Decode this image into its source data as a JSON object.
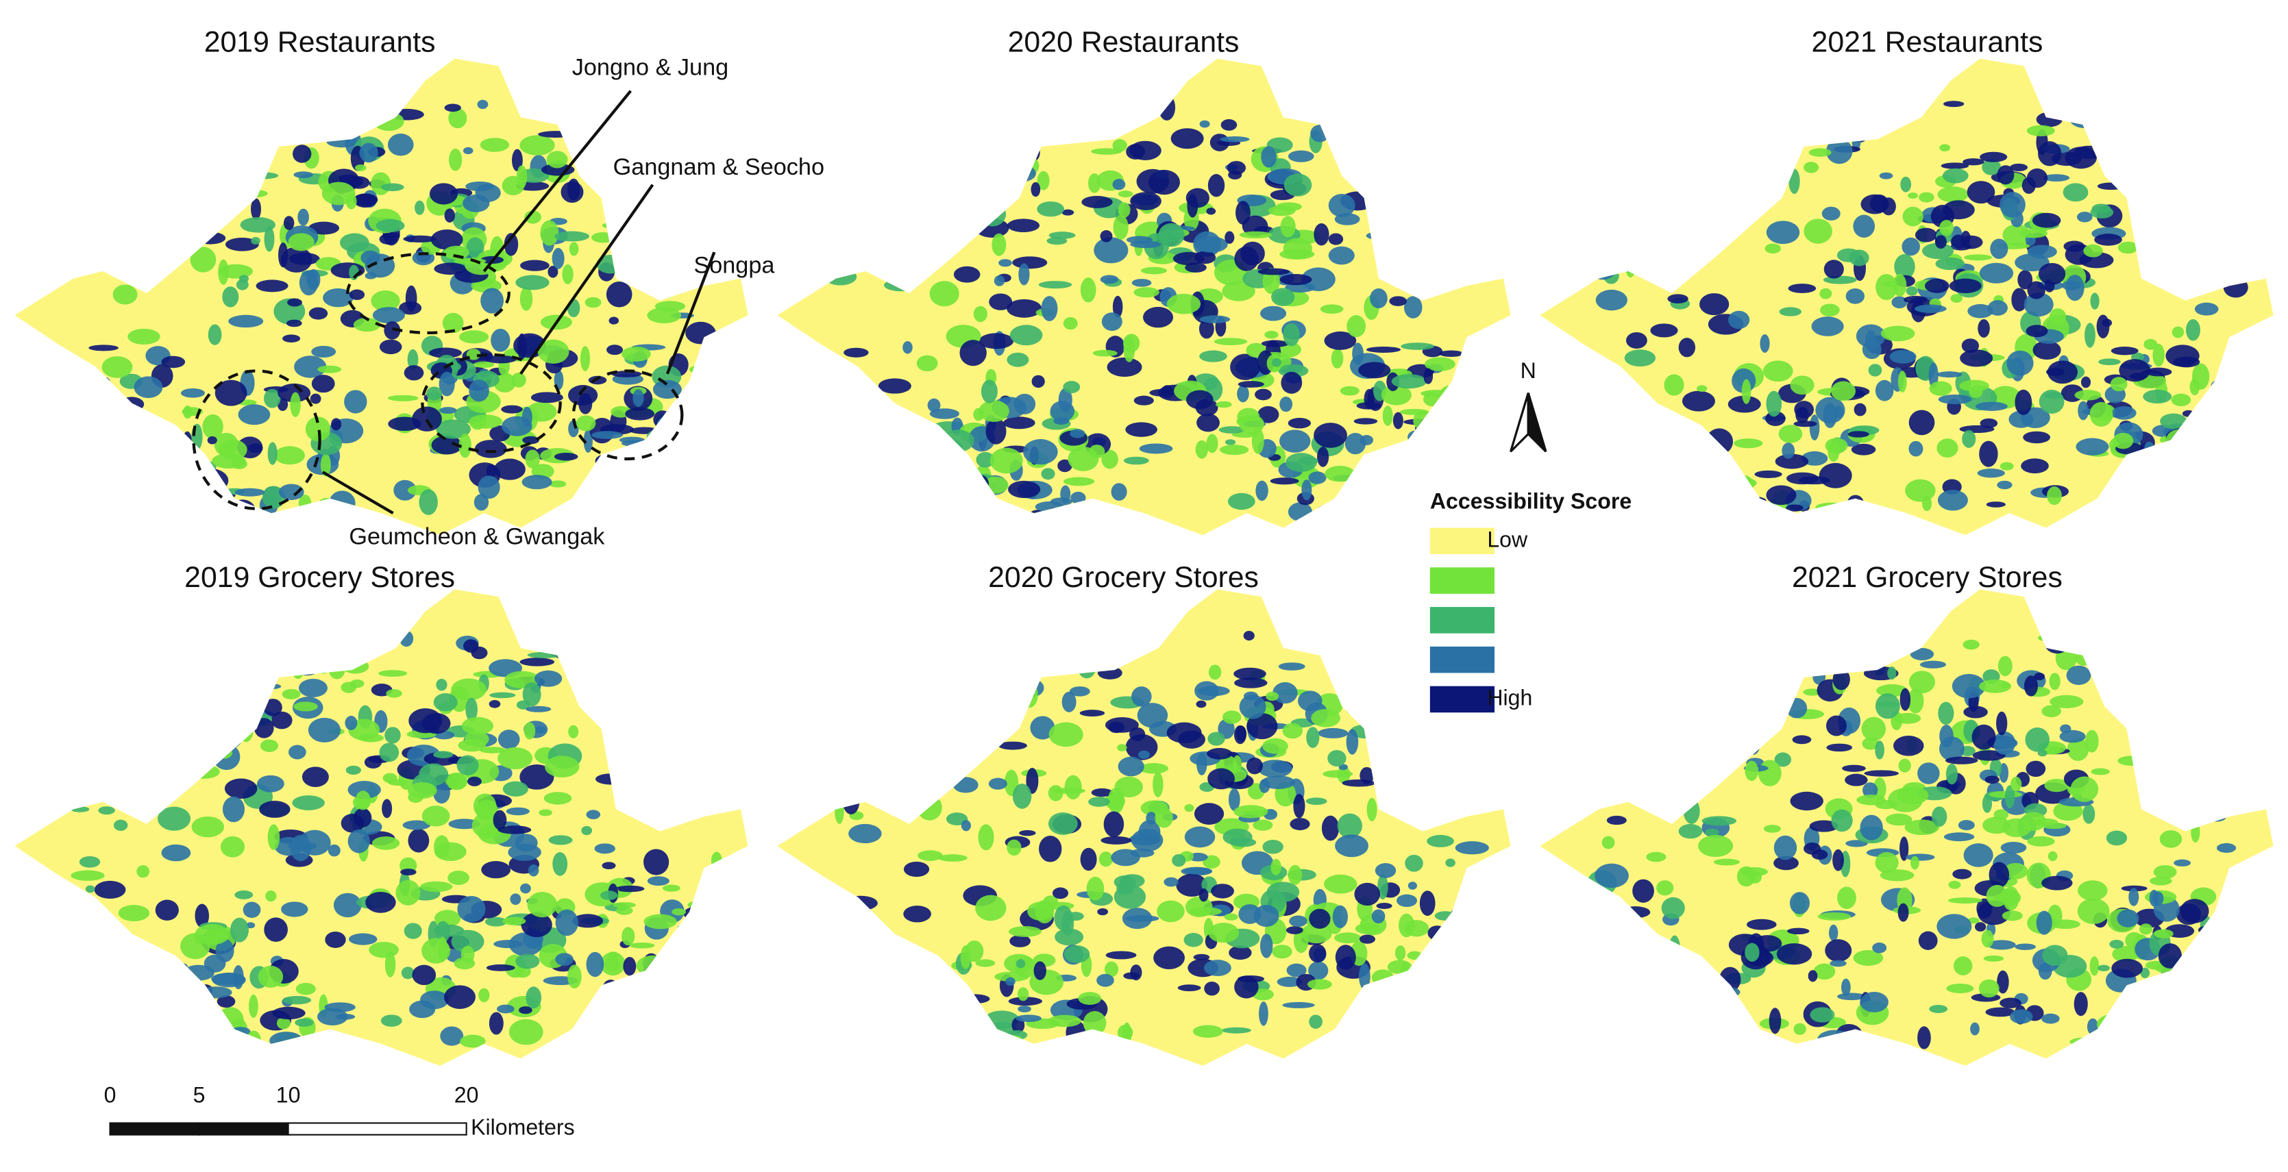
{
  "panels": [
    {
      "title": "2019 Restaurants"
    },
    {
      "title": "2020 Restaurants"
    },
    {
      "title": "2021 Restaurants"
    },
    {
      "title": "2019 Grocery Stores"
    },
    {
      "title": "2020 Grocery Stores"
    },
    {
      "title": "2021 Grocery Stores"
    }
  ],
  "annotations": [
    {
      "label": "Jongno & Jung"
    },
    {
      "label": "Gangnam & Seocho"
    },
    {
      "label": "Songpa"
    },
    {
      "label": "Geumcheon & Gwangak"
    }
  ],
  "legend": {
    "title": "Accessibility Score",
    "items": [
      {
        "label": "Low",
        "color": "#fdf67e"
      },
      {
        "color": "#72e33a"
      },
      {
        "color": "#3cb46c"
      },
      {
        "color": "#2a72a6"
      },
      {
        "label": "High",
        "color": "#0c1677"
      }
    ]
  },
  "north": "N",
  "scale_bar": {
    "ticks": [
      0,
      5,
      10,
      20
    ],
    "unit": "Kilometers"
  }
}
